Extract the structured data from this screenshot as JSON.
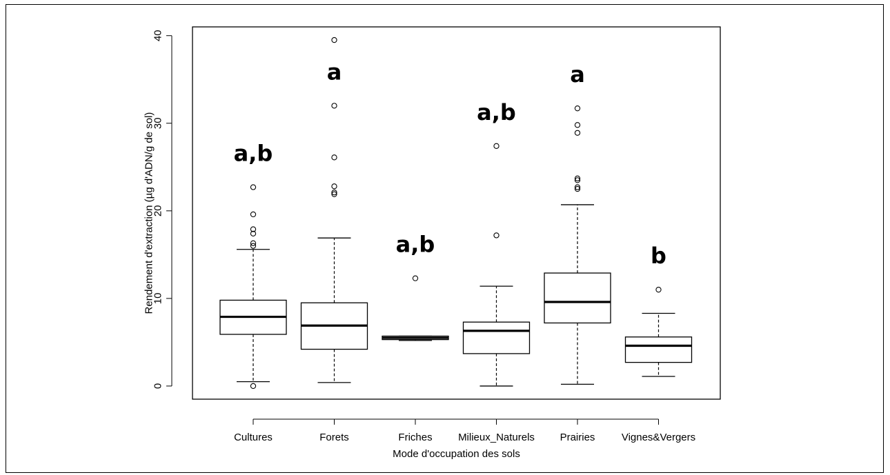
{
  "chart_data": {
    "type": "boxplot",
    "xlabel": "Mode d'occupation des sols",
    "ylabel": "Rendement d'extraction (µg d'ADN/g de sol)",
    "ylim": [
      -1.5,
      41
    ],
    "y_ticks": [
      0,
      10,
      20,
      30,
      40
    ],
    "grid": false,
    "legend": "none",
    "colors": {
      "stroke": "#000000",
      "background": "#ffffff"
    },
    "categories": [
      "Cultures",
      "Forets",
      "Friches",
      "Milieux_Naturels",
      "Prairies",
      "Vignes&Vergers"
    ],
    "boxes": [
      {
        "category": "Cultures",
        "whisker_low": 0.5,
        "q1": 5.9,
        "median": 7.9,
        "q3": 9.8,
        "whisker_high": 15.6,
        "outliers": [
          0.0,
          16.0,
          16.3,
          17.4,
          17.9,
          19.6,
          22.7
        ],
        "group_letter": "a,b"
      },
      {
        "category": "Forets",
        "whisker_low": 0.4,
        "q1": 4.2,
        "median": 6.9,
        "q3": 9.5,
        "whisker_high": 16.9,
        "outliers": [
          21.9,
          22.1,
          22.8,
          26.1,
          32.0,
          39.5
        ],
        "group_letter": "a"
      },
      {
        "category": "Friches",
        "whisker_low": 5.2,
        "q1": 5.3,
        "median": 5.5,
        "q3": 5.7,
        "whisker_high": 5.7,
        "outliers": [
          12.3
        ],
        "group_letter": "a,b"
      },
      {
        "category": "Milieux_Naturels",
        "whisker_low": 0.0,
        "q1": 3.7,
        "median": 6.3,
        "q3": 7.3,
        "whisker_high": 11.4,
        "outliers": [
          17.2,
          27.4
        ],
        "group_letter": "a,b"
      },
      {
        "category": "Prairies",
        "whisker_low": 0.2,
        "q1": 7.2,
        "median": 9.6,
        "q3": 12.9,
        "whisker_high": 20.7,
        "outliers": [
          22.5,
          22.7,
          23.5,
          23.7,
          28.9,
          29.8,
          31.7
        ],
        "group_letter": "a"
      },
      {
        "category": "Vignes&Vergers",
        "whisker_low": 1.1,
        "q1": 2.7,
        "median": 4.6,
        "q3": 5.6,
        "whisker_high": 8.3,
        "outliers": [
          11.0
        ],
        "group_letter": "b"
      }
    ]
  }
}
